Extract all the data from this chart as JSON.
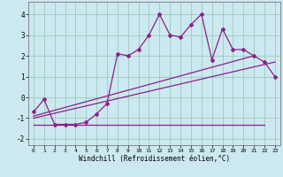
{
  "xlabel": "Windchill (Refroidissement éolien,°C)",
  "bg_color": "#cce8f0",
  "line_color": "#882288",
  "grid_color": "#99ccbb",
  "xlim": [
    -0.5,
    23.5
  ],
  "ylim": [
    -2.3,
    4.6
  ],
  "xticks": [
    0,
    1,
    2,
    3,
    4,
    5,
    6,
    7,
    8,
    9,
    10,
    11,
    12,
    13,
    14,
    15,
    16,
    17,
    18,
    19,
    20,
    21,
    22,
    23
  ],
  "yticks": [
    -2,
    -1,
    0,
    1,
    2,
    3,
    4
  ],
  "series1_x": [
    0,
    1,
    2,
    3,
    4,
    5,
    6,
    7,
    8,
    9,
    10,
    11,
    12,
    13,
    14,
    15,
    16,
    17,
    18,
    19,
    20,
    21,
    22,
    23
  ],
  "series1_y": [
    -0.7,
    -0.1,
    -1.3,
    -1.3,
    -1.3,
    -1.2,
    -0.8,
    -0.3,
    2.1,
    2.0,
    2.3,
    3.0,
    4.0,
    3.0,
    2.9,
    3.5,
    4.0,
    1.8,
    3.3,
    2.3,
    2.3,
    2.0,
    1.7,
    1.0
  ],
  "series2_x": [
    0,
    22
  ],
  "series2_y": [
    -1.3,
    -1.3
  ],
  "series3_x": [
    0,
    21
  ],
  "series3_y": [
    -0.9,
    2.0
  ],
  "series4_x": [
    0,
    23
  ],
  "series4_y": [
    -1.0,
    1.7
  ],
  "xlabel_fontsize": 5.5,
  "xtick_fontsize": 4.5,
  "ytick_fontsize": 5.5
}
